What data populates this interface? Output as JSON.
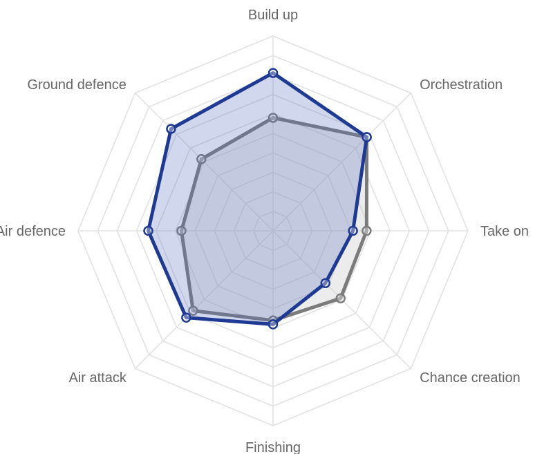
{
  "chart_data": {
    "type": "radar",
    "title": "",
    "categories": [
      "Build up",
      "Orchestration",
      "Take on",
      "Chance creation",
      "Finishing",
      "Air attack",
      "Air defence",
      "Ground defence"
    ],
    "rmax": 100,
    "grid_levels": 10,
    "grid": true,
    "legend": "none",
    "series": [
      {
        "values": [
          58,
          68,
          48,
          49,
          46,
          58,
          47,
          52
        ],
        "color": "#7b7b7b",
        "fill": "rgba(200,200,200,0.35)"
      },
      {
        "values": [
          81,
          68,
          41,
          38,
          48,
          63,
          64,
          74
        ],
        "color": "#1f3a93",
        "fill": "rgba(90,110,190,0.28)"
      }
    ]
  }
}
